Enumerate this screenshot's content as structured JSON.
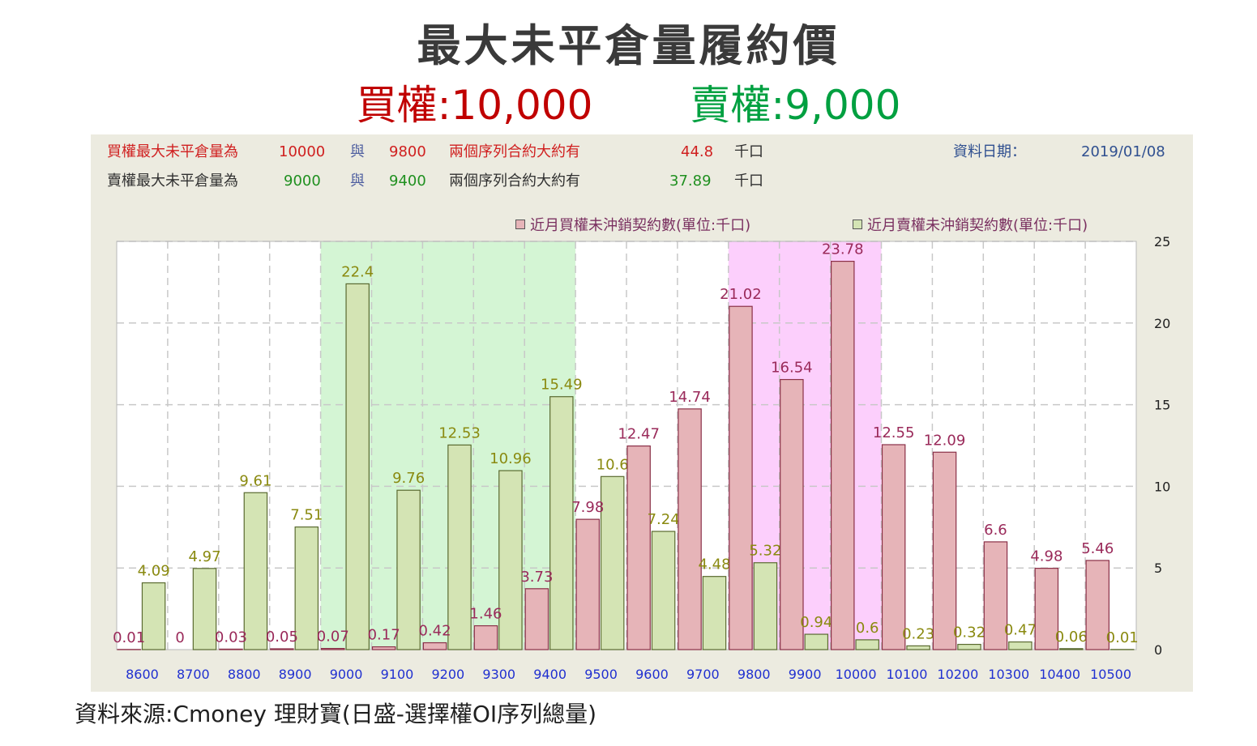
{
  "title": "最大未平倉量履約價",
  "subtitle": {
    "call_label": "買權",
    "call_value": ":10,000",
    "put_label": "賣權",
    "put_value": ":9,000"
  },
  "info": {
    "row1": {
      "label": "買權最大未平倉量為",
      "v1": "10000",
      "conj": "與",
      "v2": "9800",
      "text": "兩個序列合約大約有",
      "amount": "44.8",
      "unit": "千口"
    },
    "row2": {
      "label": "賣權最大未平倉量為",
      "v1": "9000",
      "conj": "與",
      "v2": "9400",
      "text": "兩個序列合約大約有",
      "amount": "37.89",
      "unit": "千口"
    },
    "date_label": "資料日期：",
    "date_value": "2019/01/08"
  },
  "footer": "資料來源:Cmoney 理財寶(日盛-選擇權OI序列總量)",
  "colors": {
    "call_fill": "#e6b4b8",
    "call_stroke": "#8a3048",
    "call_label": "#9a2a5a",
    "put_fill": "#d4e4b4",
    "put_stroke": "#5a6a30",
    "put_label": "#8a8a10",
    "green_band": "#d4f5d4",
    "pink_band": "#fccffc",
    "x_tick": "#2030d0"
  },
  "chart_data": {
    "type": "bar",
    "categories": [
      "8600",
      "8700",
      "8800",
      "8900",
      "9000",
      "9100",
      "9200",
      "9300",
      "9400",
      "9500",
      "9600",
      "9700",
      "9800",
      "9900",
      "10000",
      "10100",
      "10200",
      "10300",
      "10400",
      "10500"
    ],
    "series": [
      {
        "name": "近月買權未沖銷契約數(單位:千口)",
        "values": [
          0.01,
          0,
          0.03,
          0.05,
          0.07,
          0.17,
          0.42,
          1.46,
          3.73,
          7.98,
          12.47,
          14.74,
          21.02,
          16.54,
          23.78,
          12.55,
          12.09,
          6.6,
          4.98,
          5.46
        ]
      },
      {
        "name": "近月賣權未沖銷契約數(單位:千口)",
        "values": [
          4.09,
          4.97,
          9.61,
          7.51,
          22.4,
          9.76,
          12.53,
          10.96,
          15.49,
          10.6,
          7.24,
          4.48,
          5.32,
          0.94,
          0.6,
          0.23,
          0.32,
          0.47,
          0.06,
          0.01
        ]
      }
    ],
    "ylim": [
      0,
      25
    ],
    "yticks": [
      0,
      5,
      10,
      15,
      20,
      25
    ],
    "y_axis_position": "right",
    "grid": true,
    "legend": "top-right",
    "highlight_bands": [
      {
        "from": "9000",
        "to": "9400",
        "color": "green"
      },
      {
        "from": "9800",
        "to": "10000",
        "color": "pink"
      }
    ]
  }
}
